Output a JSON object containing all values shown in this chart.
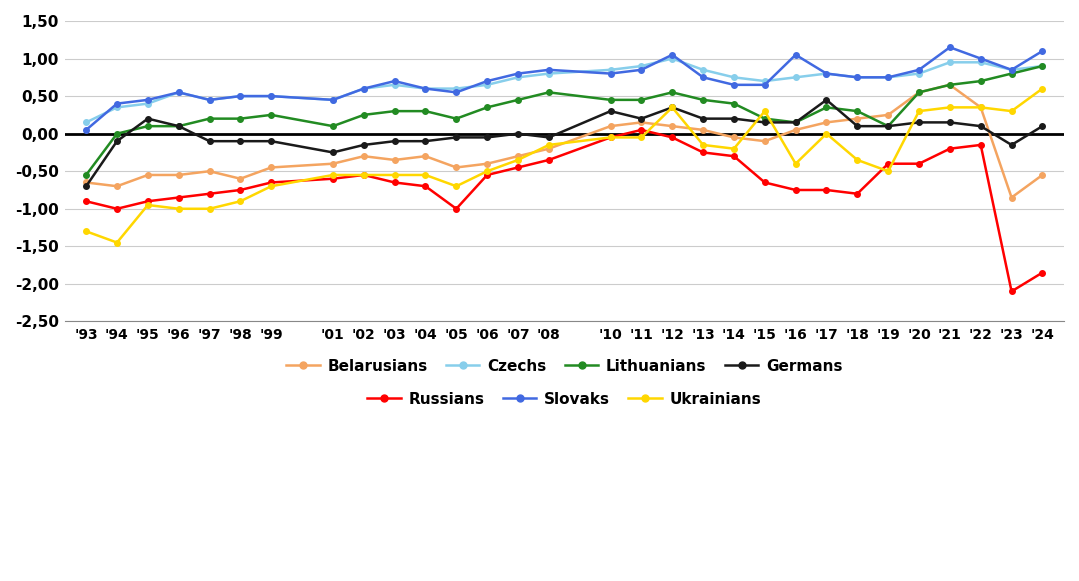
{
  "years": [
    1993,
    1994,
    1995,
    1996,
    1997,
    1998,
    1999,
    2001,
    2002,
    2003,
    2004,
    2005,
    2006,
    2007,
    2008,
    2010,
    2011,
    2012,
    2013,
    2014,
    2015,
    2016,
    2017,
    2018,
    2019,
    2020,
    2021,
    2022,
    2023,
    2024
  ],
  "series": [
    {
      "name": "Belarusians",
      "color": "#F4A460",
      "values": [
        -0.65,
        -0.7,
        -0.55,
        -0.55,
        -0.5,
        -0.6,
        -0.45,
        -0.4,
        -0.3,
        -0.35,
        -0.3,
        -0.45,
        -0.4,
        -0.3,
        -0.2,
        0.1,
        0.15,
        0.1,
        0.05,
        -0.05,
        -0.1,
        0.05,
        0.15,
        0.2,
        0.25,
        0.55,
        0.65,
        0.35,
        -0.85,
        -0.55
      ]
    },
    {
      "name": "Czechs",
      "color": "#87CEEB",
      "values": [
        0.15,
        0.35,
        0.4,
        0.55,
        0.45,
        0.5,
        0.5,
        0.45,
        0.6,
        0.65,
        0.6,
        0.6,
        0.65,
        0.75,
        0.8,
        0.85,
        0.9,
        1.0,
        0.85,
        0.75,
        0.7,
        0.75,
        0.8,
        0.75,
        0.75,
        0.8,
        0.95,
        0.95,
        0.85,
        0.9
      ]
    },
    {
      "name": "Lithuanians",
      "color": "#228B22",
      "values": [
        -0.55,
        0.0,
        0.1,
        0.1,
        0.2,
        0.2,
        0.25,
        0.1,
        0.25,
        0.3,
        0.3,
        0.2,
        0.35,
        0.45,
        0.55,
        0.45,
        0.45,
        0.55,
        0.45,
        0.4,
        0.2,
        0.15,
        0.35,
        0.3,
        0.1,
        0.55,
        0.65,
        0.7,
        0.8,
        0.9
      ]
    },
    {
      "name": "Germans",
      "color": "#1a1a1a",
      "values": [
        -0.7,
        -0.1,
        0.2,
        0.1,
        -0.1,
        -0.1,
        -0.1,
        -0.25,
        -0.15,
        -0.1,
        -0.1,
        -0.05,
        -0.05,
        0.0,
        -0.05,
        0.3,
        0.2,
        0.35,
        0.2,
        0.2,
        0.15,
        0.15,
        0.45,
        0.1,
        0.1,
        0.15,
        0.15,
        0.1,
        -0.15,
        0.1
      ]
    },
    {
      "name": "Russians",
      "color": "#FF0000",
      "values": [
        -0.9,
        -1.0,
        -0.9,
        -0.85,
        -0.8,
        -0.75,
        -0.65,
        -0.6,
        -0.55,
        -0.65,
        -0.7,
        -1.0,
        -0.55,
        -0.45,
        -0.35,
        -0.05,
        0.05,
        -0.05,
        -0.25,
        -0.3,
        -0.65,
        -0.75,
        -0.75,
        -0.8,
        -0.4,
        -0.4,
        -0.2,
        -0.15,
        -2.1,
        -1.85
      ]
    },
    {
      "name": "Slovaks",
      "color": "#4169E1",
      "values": [
        0.05,
        0.4,
        0.45,
        0.55,
        0.45,
        0.5,
        0.5,
        0.45,
        0.6,
        0.7,
        0.6,
        0.55,
        0.7,
        0.8,
        0.85,
        0.8,
        0.85,
        1.05,
        0.75,
        0.65,
        0.65,
        1.05,
        0.8,
        0.75,
        0.75,
        0.85,
        1.15,
        1.0,
        0.85,
        1.1
      ]
    },
    {
      "name": "Ukrainians",
      "color": "#FFD700",
      "values": [
        -1.3,
        -1.45,
        -0.95,
        -1.0,
        -1.0,
        -0.9,
        -0.7,
        -0.55,
        -0.55,
        -0.55,
        -0.55,
        -0.7,
        -0.5,
        -0.35,
        -0.15,
        -0.05,
        -0.05,
        0.35,
        -0.15,
        -0.2,
        0.3,
        -0.4,
        0.0,
        -0.35,
        -0.5,
        0.3,
        0.35,
        0.35,
        0.3,
        0.6
      ]
    }
  ],
  "ylim": [
    -2.5,
    1.5
  ],
  "yticks": [
    -2.5,
    -2.0,
    -1.5,
    -1.0,
    -0.5,
    0.0,
    0.5,
    1.0,
    1.5
  ],
  "ytick_labels": [
    "-2,50",
    "-2,00",
    "-1,50",
    "-1,00",
    "-0,50",
    "0,00",
    "0,50",
    "1,00",
    "1,50"
  ],
  "legend_row1": [
    "Belarusians",
    "Czechs",
    "Lithuanians",
    "Germans"
  ],
  "legend_row2": [
    "Russians",
    "Slovaks",
    "Ukrainians"
  ],
  "background_color": "#ffffff"
}
